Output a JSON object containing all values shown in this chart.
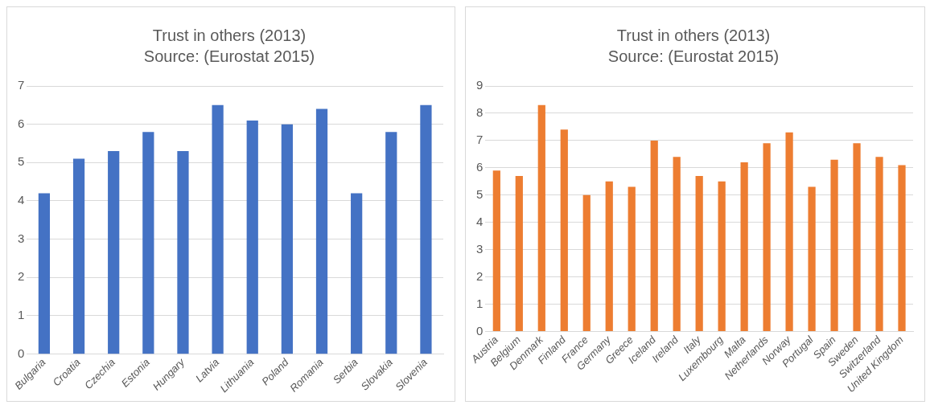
{
  "chart_data": [
    {
      "type": "bar",
      "title": "Trust in others (2013)",
      "subtitle": "Source: (Eurostat 2015)",
      "categories": [
        "Bulgaria",
        "Croatia",
        "Czechia",
        "Estonia",
        "Hungary",
        "Latvia",
        "Lithuania",
        "Poland",
        "Romania",
        "Serbia",
        "Slovakia",
        "Slovenia"
      ],
      "values": [
        4.2,
        5.1,
        5.3,
        5.8,
        5.3,
        6.5,
        6.1,
        6.0,
        6.4,
        4.2,
        5.8,
        6.5
      ],
      "color": "#4472c4",
      "ylim": [
        0,
        7
      ],
      "yticks": [
        0,
        1,
        2,
        3,
        4,
        5,
        6,
        7
      ],
      "grid": "y"
    },
    {
      "type": "bar",
      "title": "Trust in others (2013)",
      "subtitle": "Source: (Eurostat 2015)",
      "categories": [
        "Austria",
        "Belgium",
        "Denmark",
        "Finland",
        "France",
        "Germany",
        "Greece",
        "Iceland",
        "Ireland",
        "Italy",
        "Luxembourg",
        "Malta",
        "Netherlands",
        "Norway",
        "Portugal",
        "Spain",
        "Sweden",
        "Switzerland",
        "United Kingdom"
      ],
      "values": [
        5.9,
        5.7,
        8.3,
        7.4,
        5.0,
        5.5,
        5.3,
        7.0,
        6.4,
        5.7,
        5.5,
        6.2,
        6.9,
        7.3,
        5.3,
        6.3,
        6.9,
        6.4,
        6.1
      ],
      "color": "#ed7d31",
      "ylim": [
        0,
        9
      ],
      "yticks": [
        0,
        1,
        2,
        3,
        4,
        5,
        6,
        7,
        8,
        9
      ],
      "grid": "y"
    }
  ]
}
